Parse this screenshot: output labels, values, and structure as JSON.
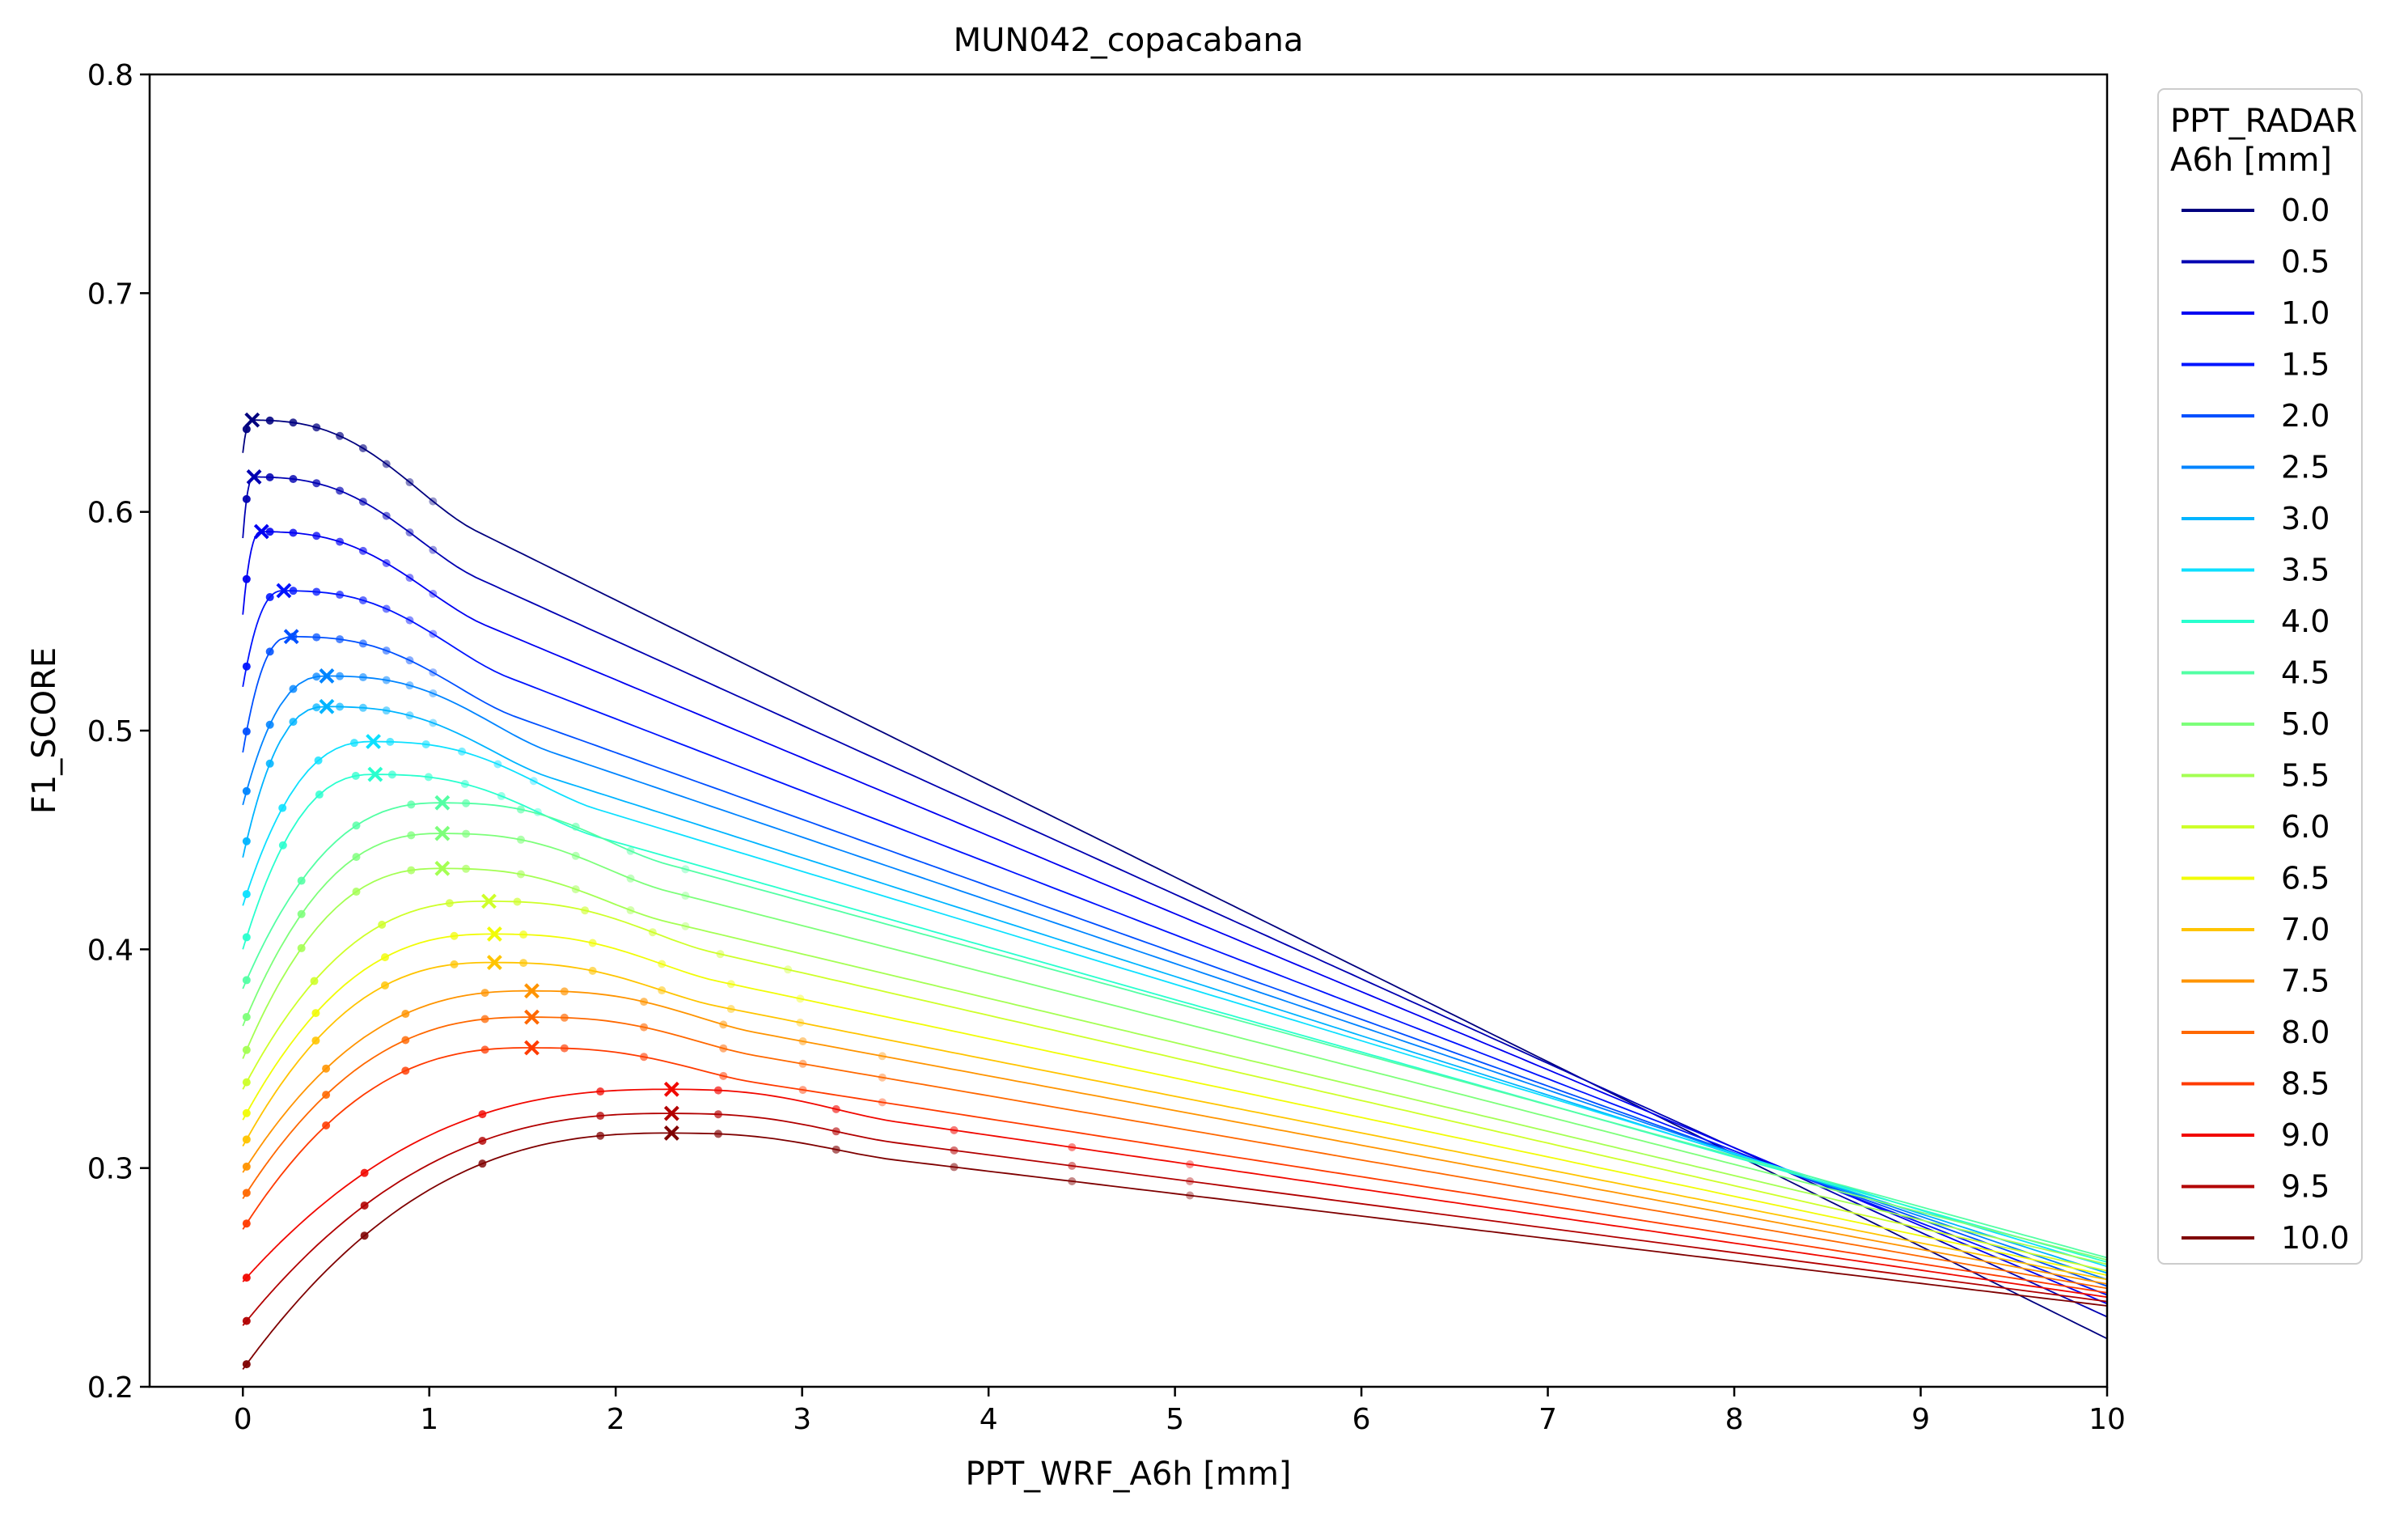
{
  "chart_data": {
    "type": "line",
    "title": "MUN042_copacabana",
    "xlabel": "PPT_WRF_A6h [mm]",
    "ylabel": "F1_SCORE",
    "xlim": [
      -0.5,
      10
    ],
    "ylim": [
      0.2,
      0.8
    ],
    "xticks": [
      0,
      1,
      2,
      3,
      4,
      5,
      6,
      7,
      8,
      9,
      10
    ],
    "yticks": [
      0.2,
      0.3,
      0.4,
      0.5,
      0.6,
      0.7,
      0.8
    ],
    "xtick_labels": [
      "0",
      "1",
      "2",
      "3",
      "4",
      "5",
      "6",
      "7",
      "8",
      "9",
      "10"
    ],
    "ytick_labels": [
      "0.2",
      "0.3",
      "0.4",
      "0.5",
      "0.6",
      "0.7",
      "0.8"
    ],
    "grid": false,
    "legend": {
      "title_line1": "PPT_RADAR",
      "title_line2": "A6h [mm]",
      "placement": "outside right, top"
    },
    "series": [
      {
        "name": "0.0",
        "color": "#00007f",
        "start": 0.627,
        "peak_x": 0.05,
        "peak": 0.642,
        "end": 0.222
      },
      {
        "name": "0.5",
        "color": "#0000b2",
        "start": 0.588,
        "peak_x": 0.06,
        "peak": 0.616,
        "end": 0.232
      },
      {
        "name": "1.0",
        "color": "#0000f1",
        "start": 0.553,
        "peak_x": 0.1,
        "peak": 0.591,
        "end": 0.238
      },
      {
        "name": "1.5",
        "color": "#0014ff",
        "start": 0.52,
        "peak_x": 0.22,
        "peak": 0.564,
        "end": 0.242
      },
      {
        "name": "2.0",
        "color": "#0050ff",
        "start": 0.49,
        "peak_x": 0.26,
        "peak": 0.543,
        "end": 0.246
      },
      {
        "name": "2.5",
        "color": "#0084ff",
        "start": 0.466,
        "peak_x": 0.45,
        "peak": 0.525,
        "end": 0.249
      },
      {
        "name": "3.0",
        "color": "#00b4ff",
        "start": 0.442,
        "peak_x": 0.45,
        "peak": 0.511,
        "end": 0.252
      },
      {
        "name": "3.5",
        "color": "#0de0ff",
        "start": 0.42,
        "peak_x": 0.7,
        "peak": 0.495,
        "end": 0.255
      },
      {
        "name": "4.0",
        "color": "#29ffce",
        "start": 0.4,
        "peak_x": 0.71,
        "peak": 0.48,
        "end": 0.257
      },
      {
        "name": "4.5",
        "color": "#53ffa4",
        "start": 0.382,
        "peak_x": 1.07,
        "peak": 0.467,
        "end": 0.259
      },
      {
        "name": "5.0",
        "color": "#7dff7a",
        "start": 0.365,
        "peak_x": 1.07,
        "peak": 0.453,
        "end": 0.258
      },
      {
        "name": "5.5",
        "color": "#a4ff53",
        "start": 0.35,
        "peak_x": 1.07,
        "peak": 0.437,
        "end": 0.256
      },
      {
        "name": "6.0",
        "color": "#ceff29",
        "start": 0.336,
        "peak_x": 1.32,
        "peak": 0.422,
        "end": 0.253
      },
      {
        "name": "6.5",
        "color": "#f1fc06",
        "start": 0.322,
        "peak_x": 1.35,
        "peak": 0.407,
        "end": 0.251
      },
      {
        "name": "7.0",
        "color": "#ffc400",
        "start": 0.31,
        "peak_x": 1.35,
        "peak": 0.394,
        "end": 0.249
      },
      {
        "name": "7.5",
        "color": "#ff9400",
        "start": 0.298,
        "peak_x": 1.55,
        "peak": 0.381,
        "end": 0.247
      },
      {
        "name": "8.0",
        "color": "#ff6800",
        "start": 0.286,
        "peak_x": 1.55,
        "peak": 0.369,
        "end": 0.245
      },
      {
        "name": "8.5",
        "color": "#ff3b00",
        "start": 0.272,
        "peak_x": 1.55,
        "peak": 0.355,
        "end": 0.243
      },
      {
        "name": "9.0",
        "color": "#f10800",
        "start": 0.248,
        "peak_x": 2.3,
        "peak": 0.336,
        "end": 0.241
      },
      {
        "name": "9.5",
        "color": "#b20000",
        "start": 0.228,
        "peak_x": 2.3,
        "peak": 0.325,
        "end": 0.239
      },
      {
        "name": "10.0",
        "color": "#7f0000",
        "start": 0.208,
        "peak_x": 2.3,
        "peak": 0.316,
        "end": 0.237
      }
    ]
  }
}
